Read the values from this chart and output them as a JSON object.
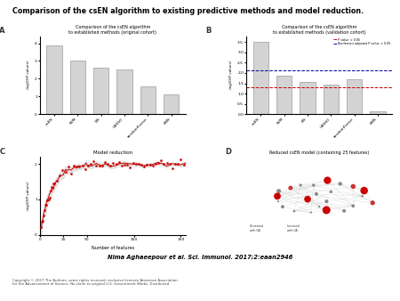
{
  "title": "Comparison of the csEN algorithm to existing predictive methods and model reduction.",
  "citation": "Nima Aghaeepour et al. Sci. Immunol. 2017;2:eaan2946",
  "copyright": "Copyright © 2017 The Authors, some rights reserved, exclusive licensee American Association\nfor the Advancement of Science. No claim to original U.S. Government Works. Distributed",
  "panel_A_title": "Comparison of the csEN algorithm\nto established methods (original cohort)",
  "panel_B_title": "Comparison of the csEN algorithm\nto established methods (validation cohort)",
  "panel_C_title": "Model reduction",
  "panel_D_title": "Reduced csEN model (containing 25 features)",
  "panel_A_categories": [
    "csEN",
    "SVM",
    "EN",
    "LASSO",
    "randomForest",
    "kNN"
  ],
  "panel_A_values": [
    3.85,
    3.0,
    2.6,
    2.5,
    1.55,
    1.1
  ],
  "panel_B_categories": [
    "csEN",
    "SVM",
    "EN",
    "LASSO",
    "randomForest",
    "kNN"
  ],
  "panel_B_values": [
    3.5,
    1.85,
    1.55,
    1.45,
    1.7,
    0.15
  ],
  "panel_B_pval_line": 1.3,
  "panel_B_bonf_line": 2.15,
  "bar_color": "#d3d3d3",
  "bar_edge_color": "#888888",
  "pval_line_color": "#cc0000",
  "bonf_line_color": "#000099",
  "ylabel_A": "-log10(P values)",
  "ylabel_B": "-log10(P values)",
  "ylabel_C": "-log10(P values)",
  "background_color": "#ffffff",
  "panel_label_color": "#333333"
}
